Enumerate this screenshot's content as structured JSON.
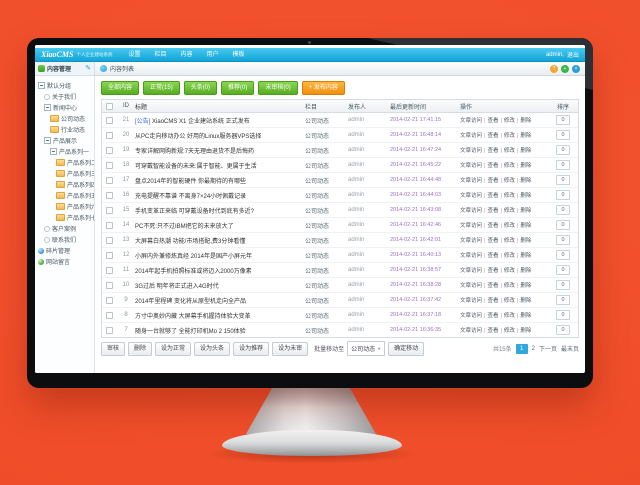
{
  "colors": {
    "background_orange": "#ee4b27",
    "topbar_blue": "#12a4d6",
    "button_green": "#58ad23",
    "button_orange": "#f08f0e",
    "page_active_blue": "#2fa8dd",
    "date_text": "#9a70c2"
  },
  "topbar": {
    "logo": "XiaoCMS",
    "logo_sub": "个人企业建站系统",
    "nav": [
      {
        "label": "设置"
      },
      {
        "label": "栏目"
      },
      {
        "label": "内容"
      },
      {
        "label": "用户"
      },
      {
        "label": "模板"
      }
    ],
    "user": "admin,",
    "logout": "退出"
  },
  "tabbar": {
    "title": "内容列表",
    "window_icons": [
      {
        "glyph": "?",
        "bg": "#f5a633",
        "name": "help"
      },
      {
        "glyph": "+",
        "bg": "#3cb54a",
        "name": "refresh"
      },
      {
        "glyph": "×",
        "bg": "#2a9fd8",
        "name": "close"
      }
    ]
  },
  "sidebar": {
    "title": "内容管理",
    "items": [
      {
        "label": "默认分组",
        "icon": "toggle",
        "indent": 0
      },
      {
        "label": "关于我们",
        "icon": "dot",
        "indent": 1
      },
      {
        "label": "新闻中心",
        "icon": "toggle",
        "indent": 1
      },
      {
        "label": "公司动态",
        "icon": "folder",
        "indent": 2
      },
      {
        "label": "行业动态",
        "icon": "folder",
        "indent": 2
      },
      {
        "label": "产品展示",
        "icon": "toggle",
        "indent": 1
      },
      {
        "label": "产品系列一",
        "icon": "toggle",
        "indent": 2
      },
      {
        "label": "产品系列二",
        "icon": "folder",
        "indent": 3
      },
      {
        "label": "产品系列三",
        "icon": "folder",
        "indent": 3
      },
      {
        "label": "产品系列四",
        "icon": "folder",
        "indent": 3
      },
      {
        "label": "产品系列五",
        "icon": "folder",
        "indent": 3
      },
      {
        "label": "产品系列六",
        "icon": "folder",
        "indent": 3
      },
      {
        "label": "产品系列七",
        "icon": "folder",
        "indent": 3
      },
      {
        "label": "客户案例",
        "icon": "dot",
        "indent": 1
      },
      {
        "label": "联系我们",
        "icon": "dot",
        "indent": 1
      },
      {
        "label": "碎片管理",
        "icon": "ball-blue",
        "indent": 0
      },
      {
        "label": "网站留言",
        "icon": "ball-green",
        "indent": 0
      }
    ]
  },
  "filters": [
    {
      "label": "全部内容",
      "variant": "green"
    },
    {
      "label": "正常(15)",
      "variant": "green"
    },
    {
      "label": "头条(0)",
      "variant": "green"
    },
    {
      "label": "推荐(0)",
      "variant": "green"
    },
    {
      "label": "未审核(0)",
      "variant": "green"
    },
    {
      "label": "+ 发布内容",
      "variant": "orange"
    }
  ],
  "table": {
    "headers": {
      "id": "ID",
      "title": "标题",
      "category": "栏目",
      "publisher": "发布人",
      "updated": "最后更新时间",
      "ops": "操作",
      "sort": "排序"
    },
    "ops": [
      "文章访问",
      "查看",
      "修改",
      "删除"
    ],
    "ops_separator": "|",
    "rows": [
      {
        "id": "21",
        "prefix": "[公告] ",
        "title": "XiaoCMS X1 企业建站系统 正式发布",
        "category": "公司动态",
        "publisher": "admin",
        "updated": "2014-02-21 17:41:15",
        "sort": "0"
      },
      {
        "id": "20",
        "prefix": "",
        "title": "从PC走向移动办公 好用的Linux服务器VPS选择",
        "category": "公司动态",
        "publisher": "admin",
        "updated": "2014-02-21 16:48:14",
        "sort": "0"
      },
      {
        "id": "19",
        "prefix": "",
        "title": "专家详解网购新规:7天无理由退货不是后悔药",
        "category": "公司动态",
        "publisher": "admin",
        "updated": "2014-02-21 16:47:24",
        "sort": "0"
      },
      {
        "id": "18",
        "prefix": "",
        "title": "可穿戴智能设备的未来:属于智能、更属于生活",
        "category": "公司动态",
        "publisher": "admin",
        "updated": "2014-02-21 16:45:22",
        "sort": "0"
      },
      {
        "id": "17",
        "prefix": "",
        "title": "盘点2014年的智能硬件 你最期待的有哪些",
        "category": "公司动态",
        "publisher": "admin",
        "updated": "2014-02-21 16:44:48",
        "sort": "0"
      },
      {
        "id": "16",
        "prefix": "",
        "title": "充电提醒不靠谱 不离身7×24小时佩戴记录",
        "category": "公司动态",
        "publisher": "admin",
        "updated": "2014-02-21 16:44:03",
        "sort": "0"
      },
      {
        "id": "15",
        "prefix": "",
        "title": "手机变革正来临 可穿戴设备时代到底有多近?",
        "category": "公司动态",
        "publisher": "admin",
        "updated": "2014-02-21 16:43:08",
        "sort": "0"
      },
      {
        "id": "14",
        "prefix": "",
        "title": "PC不死:只不过IBM把它的未来放大了",
        "category": "公司动态",
        "publisher": "admin",
        "updated": "2014-02-21 16:42:46",
        "sort": "0"
      },
      {
        "id": "13",
        "prefix": "",
        "title": "大屏幕白热潮 功能/市场搭配,费3分钟看懂",
        "category": "公司动态",
        "publisher": "admin",
        "updated": "2014-02-21 16:42:01",
        "sort": "0"
      },
      {
        "id": "12",
        "prefix": "",
        "title": "小屏内外兼修炼真经 2014年是国产小屏元年",
        "category": "公司动态",
        "publisher": "admin",
        "updated": "2014-02-21 16:40:13",
        "sort": "0"
      },
      {
        "id": "11",
        "prefix": "",
        "title": "2014年起手机拍照标准或将迈入2000万像素",
        "category": "公司动态",
        "publisher": "admin",
        "updated": "2014-02-21 16:38:57",
        "sort": "0"
      },
      {
        "id": "10",
        "prefix": "",
        "title": "3G过后 明年将正式进入4G时代",
        "category": "公司动态",
        "publisher": "admin",
        "updated": "2014-02-21 16:38:28",
        "sort": "0"
      },
      {
        "id": "9",
        "prefix": "",
        "title": "2014年里程碑 变化将从原型机走向全产品",
        "category": "公司动态",
        "publisher": "admin",
        "updated": "2014-02-21 16:37:42",
        "sort": "0"
      },
      {
        "id": "8",
        "prefix": "",
        "title": "方寸中奥妙内藏 大屏幕手机握持体验大变革",
        "category": "公司动态",
        "publisher": "admin",
        "updated": "2014-02-21 16:37:18",
        "sort": "0"
      },
      {
        "id": "7",
        "prefix": "",
        "title": "随身一台就够了 全能打印机Mo 2 150体验",
        "category": "公司动态",
        "publisher": "admin",
        "updated": "2014-02-21 16:36:35",
        "sort": "0"
      }
    ]
  },
  "footer": {
    "actions": [
      {
        "label": "审核"
      },
      {
        "label": "删除"
      },
      {
        "label": "设为正常"
      },
      {
        "label": "设为头条"
      },
      {
        "label": "设为推荐"
      },
      {
        "label": "设为未审"
      }
    ],
    "move_label": "批量移动至",
    "move_select": "公司动态",
    "move_caret": "▼",
    "confirm": "确定移动",
    "pagination": [
      {
        "label": "共15条",
        "variant": "count",
        "interactable": false
      },
      {
        "label": "1",
        "variant": "page-active",
        "interactable": true
      },
      {
        "label": "2",
        "variant": "link",
        "interactable": true
      },
      {
        "label": "下一页",
        "variant": "link",
        "interactable": true
      },
      {
        "label": "最末页",
        "variant": "link",
        "interactable": true
      }
    ]
  }
}
